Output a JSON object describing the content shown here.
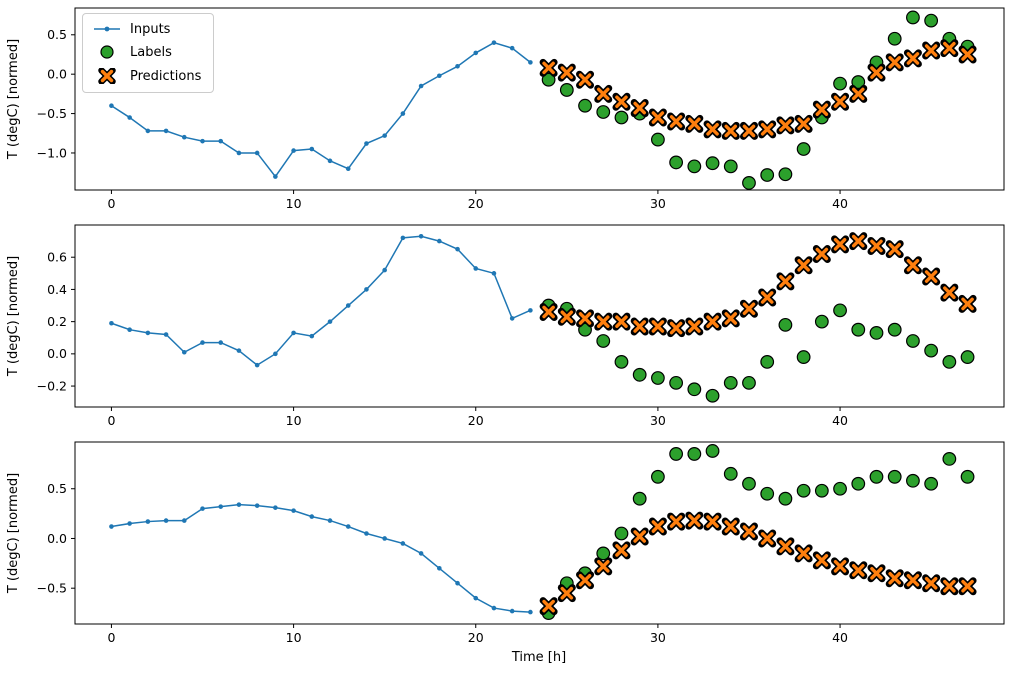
{
  "figure": {
    "background": "#ffffff",
    "xlabel": "Time [h]",
    "colors": {
      "inputs": "#1f77b4",
      "labels": "#2ca02c",
      "predictions": "#ff7f0e",
      "marker_edge": "#000000",
      "axis": "#000000",
      "legend_border": "#cccccc"
    },
    "legend": [
      {
        "label": "Inputs"
      },
      {
        "label": "Labels"
      },
      {
        "label": "Predictions"
      }
    ]
  },
  "chart_data": [
    {
      "type": "line",
      "title": "",
      "xlabel": "",
      "ylabel": "T (degC) [normed]",
      "xlim": [
        -2,
        49
      ],
      "ylim": [
        -1.47,
        0.84
      ],
      "xticks": [
        0,
        10,
        20,
        30,
        40
      ],
      "yticks": [
        -1.0,
        -0.5,
        0.0,
        0.5
      ],
      "grid": false,
      "legend_position": "upper left",
      "series": [
        {
          "name": "Inputs",
          "marker": "dot-line",
          "x": [
            0,
            1,
            2,
            3,
            4,
            5,
            6,
            7,
            8,
            9,
            10,
            11,
            12,
            13,
            14,
            15,
            16,
            17,
            18,
            19,
            20,
            21,
            22,
            23
          ],
          "values": [
            -0.4,
            -0.55,
            -0.72,
            -0.72,
            -0.8,
            -0.85,
            -0.85,
            -1.0,
            -1.0,
            -1.3,
            -0.97,
            -0.95,
            -1.1,
            -1.2,
            -0.88,
            -0.78,
            -0.5,
            -0.15,
            -0.02,
            0.1,
            0.27,
            0.4,
            0.33,
            0.15
          ]
        },
        {
          "name": "Labels",
          "marker": "circle",
          "x": [
            24,
            25,
            26,
            27,
            28,
            29,
            30,
            31,
            32,
            33,
            34,
            35,
            36,
            37,
            38,
            39,
            40,
            41,
            42,
            43,
            44,
            45,
            46,
            47
          ],
          "values": [
            -0.07,
            -0.2,
            -0.4,
            -0.48,
            -0.55,
            -0.5,
            -0.83,
            -1.12,
            -1.17,
            -1.13,
            -1.17,
            -1.38,
            -1.28,
            -1.27,
            -0.95,
            -0.55,
            -0.12,
            -0.1,
            0.15,
            0.45,
            0.72,
            0.68,
            0.45,
            0.35
          ]
        },
        {
          "name": "Predictions",
          "marker": "X",
          "x": [
            24,
            25,
            26,
            27,
            28,
            29,
            30,
            31,
            32,
            33,
            34,
            35,
            36,
            37,
            38,
            39,
            40,
            41,
            42,
            43,
            44,
            45,
            46,
            47
          ],
          "values": [
            0.08,
            0.02,
            -0.07,
            -0.25,
            -0.35,
            -0.43,
            -0.55,
            -0.6,
            -0.63,
            -0.7,
            -0.72,
            -0.72,
            -0.7,
            -0.65,
            -0.63,
            -0.45,
            -0.35,
            -0.25,
            0.02,
            0.15,
            0.2,
            0.3,
            0.33,
            0.25
          ]
        }
      ]
    },
    {
      "type": "line",
      "title": "",
      "xlabel": "",
      "ylabel": "T (degC) [normed]",
      "xlim": [
        -2,
        49
      ],
      "ylim": [
        -0.33,
        0.8
      ],
      "xticks": [
        0,
        10,
        20,
        30,
        40
      ],
      "yticks": [
        -0.2,
        0.0,
        0.2,
        0.4,
        0.6
      ],
      "grid": false,
      "series": [
        {
          "name": "Inputs",
          "marker": "dot-line",
          "x": [
            0,
            1,
            2,
            3,
            4,
            5,
            6,
            7,
            8,
            9,
            10,
            11,
            12,
            13,
            14,
            15,
            16,
            17,
            18,
            19,
            20,
            21,
            22,
            23
          ],
          "values": [
            0.19,
            0.15,
            0.13,
            0.12,
            0.01,
            0.07,
            0.07,
            0.02,
            -0.07,
            0.0,
            0.13,
            0.11,
            0.2,
            0.3,
            0.4,
            0.52,
            0.72,
            0.73,
            0.7,
            0.65,
            0.53,
            0.5,
            0.22,
            0.27
          ]
        },
        {
          "name": "Labels",
          "marker": "circle",
          "x": [
            24,
            25,
            26,
            27,
            28,
            29,
            30,
            31,
            32,
            33,
            34,
            35,
            36,
            37,
            38,
            39,
            40,
            41,
            42,
            43,
            44,
            45,
            46,
            47
          ],
          "values": [
            0.3,
            0.28,
            0.15,
            0.08,
            -0.05,
            -0.13,
            -0.15,
            -0.18,
            -0.22,
            -0.26,
            -0.18,
            -0.18,
            -0.05,
            0.18,
            -0.02,
            0.2,
            0.27,
            0.15,
            0.13,
            0.15,
            0.08,
            0.02,
            -0.05,
            -0.02
          ]
        },
        {
          "name": "Predictions",
          "marker": "X",
          "x": [
            24,
            25,
            26,
            27,
            28,
            29,
            30,
            31,
            32,
            33,
            34,
            35,
            36,
            37,
            38,
            39,
            40,
            41,
            42,
            43,
            44,
            45,
            46,
            47
          ],
          "values": [
            0.26,
            0.23,
            0.22,
            0.2,
            0.2,
            0.17,
            0.17,
            0.16,
            0.17,
            0.2,
            0.22,
            0.28,
            0.35,
            0.45,
            0.55,
            0.62,
            0.68,
            0.7,
            0.67,
            0.65,
            0.55,
            0.48,
            0.38,
            0.31
          ]
        }
      ]
    },
    {
      "type": "line",
      "title": "",
      "xlabel": "Time [h]",
      "ylabel": "T (degC) [normed]",
      "xlim": [
        -2,
        49
      ],
      "ylim": [
        -0.86,
        0.97
      ],
      "xticks": [
        0,
        10,
        20,
        30,
        40
      ],
      "yticks": [
        -0.5,
        0.0,
        0.5
      ],
      "grid": false,
      "series": [
        {
          "name": "Inputs",
          "marker": "dot-line",
          "x": [
            0,
            1,
            2,
            3,
            4,
            5,
            6,
            7,
            8,
            9,
            10,
            11,
            12,
            13,
            14,
            15,
            16,
            17,
            18,
            19,
            20,
            21,
            22,
            23
          ],
          "values": [
            0.12,
            0.15,
            0.17,
            0.18,
            0.18,
            0.3,
            0.32,
            0.34,
            0.33,
            0.31,
            0.28,
            0.22,
            0.18,
            0.12,
            0.05,
            0.0,
            -0.05,
            -0.15,
            -0.3,
            -0.45,
            -0.6,
            -0.7,
            -0.73,
            -0.74
          ]
        },
        {
          "name": "Labels",
          "marker": "circle",
          "x": [
            24,
            25,
            26,
            27,
            28,
            29,
            30,
            31,
            32,
            33,
            34,
            35,
            36,
            37,
            38,
            39,
            40,
            41,
            42,
            43,
            44,
            45,
            46,
            47
          ],
          "values": [
            -0.75,
            -0.45,
            -0.35,
            -0.15,
            0.05,
            0.4,
            0.62,
            0.85,
            0.85,
            0.88,
            0.65,
            0.55,
            0.45,
            0.4,
            0.48,
            0.48,
            0.5,
            0.55,
            0.62,
            0.62,
            0.58,
            0.55,
            0.8,
            0.62
          ]
        },
        {
          "name": "Predictions",
          "marker": "X",
          "x": [
            24,
            25,
            26,
            27,
            28,
            29,
            30,
            31,
            32,
            33,
            34,
            35,
            36,
            37,
            38,
            39,
            40,
            41,
            42,
            43,
            44,
            45,
            46,
            47
          ],
          "values": [
            -0.68,
            -0.55,
            -0.42,
            -0.28,
            -0.12,
            0.02,
            0.12,
            0.17,
            0.18,
            0.17,
            0.12,
            0.07,
            0.0,
            -0.08,
            -0.15,
            -0.22,
            -0.28,
            -0.32,
            -0.35,
            -0.4,
            -0.42,
            -0.45,
            -0.48,
            -0.48
          ]
        }
      ]
    }
  ]
}
